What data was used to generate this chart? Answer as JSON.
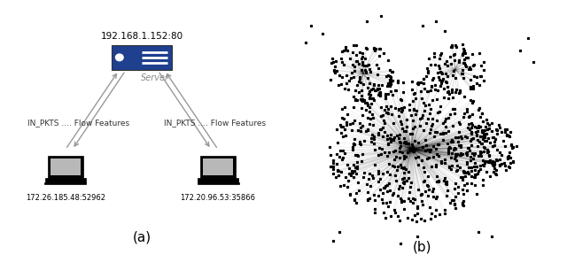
{
  "subtitle_a": "(a)",
  "subtitle_b": "(b)",
  "server_ip": "192.168.1.152:80",
  "server_label": "Server",
  "client1_ip": "172.26.185.48:52962",
  "client2_ip": "172.20.96.53:35866",
  "edge_label_left": "IN_PKTS .... Flow Features",
  "edge_label_right": "IN_PKTS .... Flow Features",
  "server_color": "#1f3f8f",
  "bg_color": "#ffffff",
  "text_color": "#000000",
  "arrow_color": "#999999",
  "node_color": "#000000"
}
